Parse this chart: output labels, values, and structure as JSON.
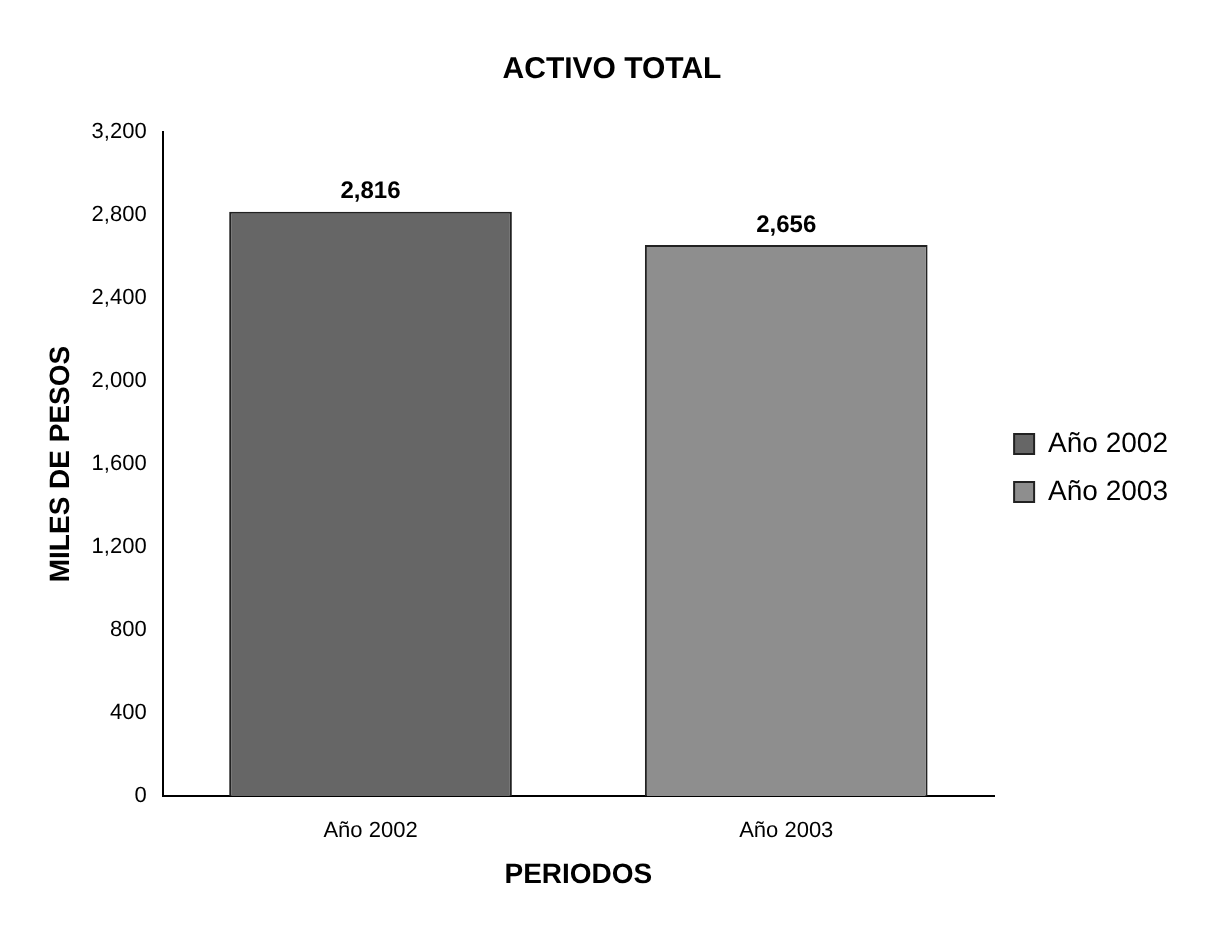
{
  "chart_data": {
    "type": "bar",
    "title": "ACTIVO TOTAL",
    "xlabel": "PERIODOS",
    "ylabel": "MILES DE PESOS",
    "categories": [
      "Año 2002",
      "Año 2003"
    ],
    "series": [
      {
        "name": "Año 2002",
        "color": "#666666",
        "values": [
          2816,
          null
        ],
        "value_labels": [
          "2,816",
          null
        ]
      },
      {
        "name": "Año 2003",
        "color": "#8e8e8e",
        "values": [
          null,
          2656
        ],
        "value_labels": [
          null,
          "2,656"
        ]
      }
    ],
    "ylim": [
      0,
      3200
    ],
    "yticks": [
      {
        "value": 0,
        "label": "0"
      },
      {
        "value": 400,
        "label": "400"
      },
      {
        "value": 800,
        "label": "800"
      },
      {
        "value": 1200,
        "label": "1,200"
      },
      {
        "value": 1600,
        "label": "1,600"
      },
      {
        "value": 2000,
        "label": "2,000"
      },
      {
        "value": 2400,
        "label": "2,400"
      },
      {
        "value": 2800,
        "label": "2,800"
      },
      {
        "value": 3200,
        "label": "3,200"
      }
    ],
    "grid": false,
    "legend": "right"
  }
}
